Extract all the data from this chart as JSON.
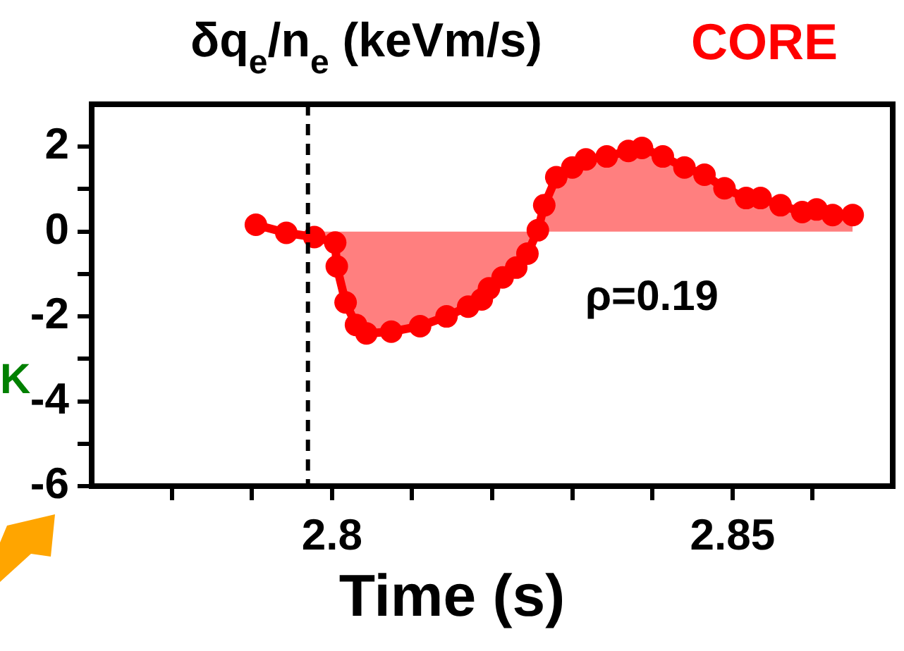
{
  "chart_data": {
    "type": "area",
    "title": "δq$_{e}$/n$_{e}$ (keVm/s)",
    "xlabel": "Time (s)",
    "annotations": [
      "CORE",
      "ρ=0.19",
      "K"
    ],
    "x": [
      2.7905,
      2.7943,
      2.7978,
      2.8004,
      2.8006,
      2.8017,
      2.803,
      2.8043,
      2.8074,
      2.811,
      2.8143,
      2.817,
      2.8187,
      2.8196,
      2.8213,
      2.823,
      2.8244,
      2.8257,
      2.8265,
      2.828,
      2.83,
      2.8317,
      2.8343,
      2.837,
      2.8387,
      2.8413,
      2.844,
      2.8465,
      2.849,
      2.8517,
      2.8535,
      2.856,
      2.8587,
      2.8605,
      2.8625,
      2.865
    ],
    "series": [
      {
        "color": "#ff0000",
        "values": [
          0.16,
          -0.03,
          -0.13,
          -0.26,
          -0.82,
          -1.67,
          -2.2,
          -2.4,
          -2.36,
          -2.23,
          -2.0,
          -1.77,
          -1.6,
          -1.34,
          -1.08,
          -0.85,
          -0.52,
          0.03,
          0.62,
          1.28,
          1.51,
          1.7,
          1.77,
          1.9,
          1.97,
          1.77,
          1.51,
          1.34,
          1.02,
          0.79,
          0.79,
          0.62,
          0.46,
          0.52,
          0.39,
          0.39
        ]
      }
    ],
    "xlim": [
      2.77,
      2.87
    ],
    "xticks": [
      {
        "value": 2.78,
        "label": null
      },
      {
        "value": 2.79,
        "label": null
      },
      2.8,
      {
        "value": 2.81,
        "label": null
      },
      {
        "value": 2.82,
        "label": null
      },
      {
        "value": 2.83,
        "label": null
      },
      {
        "value": 2.84,
        "label": null
      },
      2.85,
      {
        "value": 2.86,
        "label": null
      }
    ],
    "ylim": [
      -6,
      3
    ],
    "yticks": [
      -6,
      {
        "value": -5,
        "label": null
      },
      -4,
      {
        "value": -3,
        "label": null
      },
      -2,
      {
        "value": -1,
        "label": null
      },
      0,
      {
        "value": 1,
        "label": null
      },
      2
    ],
    "ref_lines": [
      {
        "axis": "x",
        "value": 2.797,
        "color": "#000000",
        "line_style": "dashed"
      }
    ],
    "marker": "circle",
    "grid": false,
    "legend": false
  }
}
